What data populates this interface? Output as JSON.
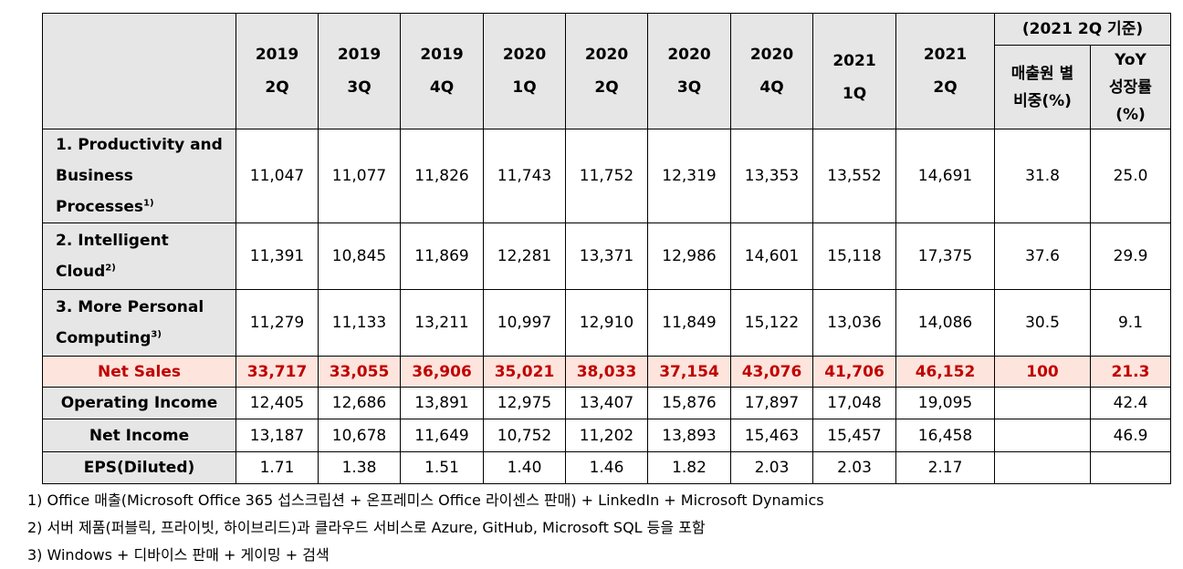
{
  "headers": {
    "periods": [
      {
        "year": "2019",
        "q": "2Q"
      },
      {
        "year": "2019",
        "q": "3Q"
      },
      {
        "year": "2019",
        "q": "4Q"
      },
      {
        "year": "2020",
        "q": "1Q"
      },
      {
        "year": "2020",
        "q": "2Q"
      },
      {
        "year": "2020",
        "q": "3Q"
      },
      {
        "year": "2020",
        "q": "4Q"
      },
      {
        "year": "2021",
        "q": "1Q"
      },
      {
        "year": "2021",
        "q": "2Q"
      }
    ],
    "group_label": "(2021 2Q 기준)",
    "share_label_1": "매출원 별",
    "share_label_2": "비중(%)",
    "yoy_label_1": "YoY",
    "yoy_label_2": "성장률",
    "yoy_label_3": "(%)"
  },
  "segments": [
    {
      "lines": [
        "1. Productivity and",
        "Business",
        "Processes"
      ],
      "sup": "1)",
      "values": [
        "11,047",
        "11,077",
        "11,826",
        "11,743",
        "11,752",
        "12,319",
        "13,353",
        "13,552",
        "14,691"
      ],
      "share": "31.8",
      "yoy": "25.0"
    },
    {
      "lines": [
        "2. Intelligent",
        "Cloud"
      ],
      "sup": "2)",
      "values": [
        "11,391",
        "10,845",
        "11,869",
        "12,281",
        "13,371",
        "12,986",
        "14,601",
        "15,118",
        "17,375"
      ],
      "share": "37.6",
      "yoy": "29.9"
    },
    {
      "lines": [
        "3. More Personal",
        "Computing"
      ],
      "sup": "3)",
      "values": [
        "11,279",
        "11,133",
        "13,211",
        "10,997",
        "12,910",
        "11,849",
        "15,122",
        "13,036",
        "14,086"
      ],
      "share": "30.5",
      "yoy": "9.1"
    }
  ],
  "totals": [
    {
      "label": "Net Sales",
      "values": [
        "33,717",
        "33,055",
        "36,906",
        "35,021",
        "38,033",
        "37,154",
        "43,076",
        "41,706",
        "46,152"
      ],
      "share": "100",
      "yoy": "21.3"
    },
    {
      "label": "Operating Income",
      "values": [
        "12,405",
        "12,686",
        "13,891",
        "12,975",
        "13,407",
        "15,876",
        "17,897",
        "17,048",
        "19,095"
      ],
      "share": "",
      "yoy": "42.4"
    },
    {
      "label": "Net Income",
      "values": [
        "13,187",
        "10,678",
        "11,649",
        "10,752",
        "11,202",
        "13,893",
        "15,463",
        "15,457",
        "16,458"
      ],
      "share": "",
      "yoy": "46.9"
    },
    {
      "label": "EPS(Diluted)",
      "values": [
        "1.71",
        "1.38",
        "1.51",
        "1.40",
        "1.46",
        "1.82",
        "2.03",
        "2.03",
        "2.17"
      ],
      "share": "",
      "yoy": ""
    }
  ],
  "footnotes": [
    "1) Office 매출(Microsoft Office 365 섭스크립션 + 온프레미스 Office 라이센스 판매) + LinkedIn + Microsoft Dynamics",
    "2) 서버 제품(퍼블릭, 프라이빗, 하이브리드)과 클라우드 서비스로 Azure, GitHub, Microsoft SQL 등을 포함",
    "3) Windows + 디바이스 판매 + 게이밍 + 검색"
  ]
}
